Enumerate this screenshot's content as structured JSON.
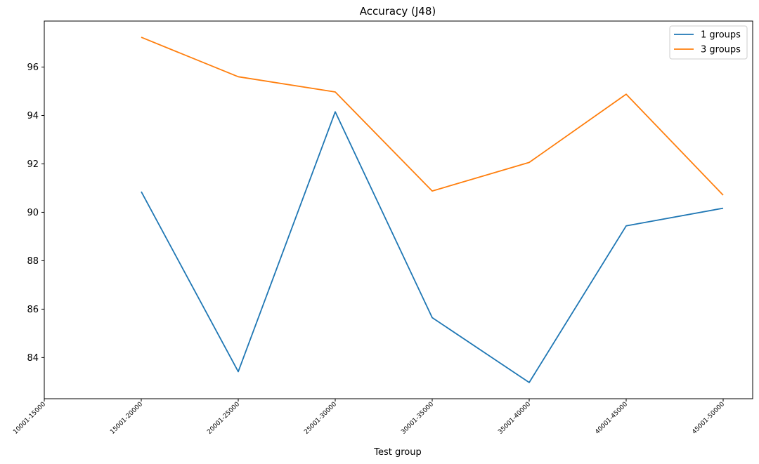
{
  "chart_data": {
    "type": "line",
    "title": "Accuracy (J48)",
    "xlabel": "Test group",
    "ylabel": "",
    "categories": [
      "10001-15000",
      "15001-20000",
      "20001-25000",
      "25001-30000",
      "30001-35000",
      "35001-40000",
      "40001-45000",
      "45001-50000"
    ],
    "yticks": [
      84,
      86,
      88,
      90,
      92,
      94,
      96
    ],
    "ylim": [
      82.3,
      97.9
    ],
    "grid": false,
    "legend_position": "top-right",
    "series": [
      {
        "name": "1 groups",
        "color": "#1f77b4",
        "values": [
          null,
          90.85,
          83.42,
          94.15,
          85.65,
          82.97,
          89.44,
          90.17
        ]
      },
      {
        "name": "3 groups",
        "color": "#ff7f0e",
        "values": [
          null,
          97.23,
          95.6,
          94.97,
          90.88,
          92.06,
          94.88,
          90.71
        ]
      }
    ]
  }
}
